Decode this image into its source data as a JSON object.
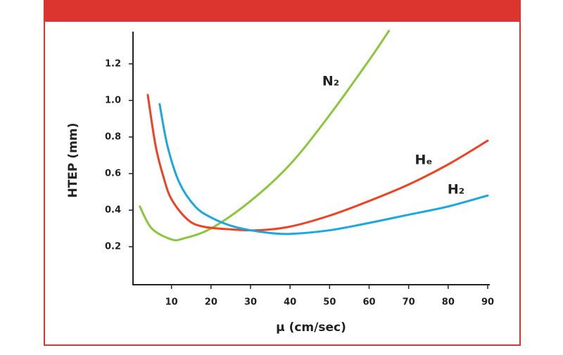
{
  "chart_data": {
    "type": "line",
    "x_label": "μ (cm/sec)",
    "y_label": "HTEP (mm)",
    "xlim": [
      0,
      90
    ],
    "ylim": [
      0,
      1.38
    ],
    "xticks": [
      10,
      20,
      30,
      40,
      50,
      60,
      70,
      80,
      90
    ],
    "yticks": [
      0.2,
      0.4,
      0.6,
      0.8,
      {
        "value": 1,
        "label": "1.0"
      },
      1.2
    ],
    "series": [
      {
        "name": "N₂",
        "color": "#8cc63f",
        "x": [
          2,
          5,
          10,
          13,
          20,
          30,
          40,
          50,
          60,
          65
        ],
        "values": [
          0.42,
          0.3,
          0.24,
          0.245,
          0.3,
          0.45,
          0.65,
          0.92,
          1.22,
          1.38
        ]
      },
      {
        "name": "Hₑ",
        "color": "#ef4123",
        "x": [
          4,
          6,
          8,
          10,
          14,
          18,
          25,
          32,
          40,
          50,
          60,
          70,
          80,
          90
        ],
        "values": [
          1.03,
          0.75,
          0.58,
          0.46,
          0.35,
          0.31,
          0.295,
          0.29,
          0.31,
          0.37,
          0.45,
          0.54,
          0.65,
          0.78
        ]
      },
      {
        "name": "H₂",
        "color": "#1ba8e0",
        "x": [
          7,
          9,
          12,
          16,
          20,
          25,
          30,
          35,
          40,
          50,
          60,
          70,
          80,
          90
        ],
        "values": [
          0.98,
          0.75,
          0.55,
          0.42,
          0.36,
          0.315,
          0.29,
          0.275,
          0.27,
          0.29,
          0.33,
          0.375,
          0.42,
          0.48
        ]
      }
    ]
  }
}
